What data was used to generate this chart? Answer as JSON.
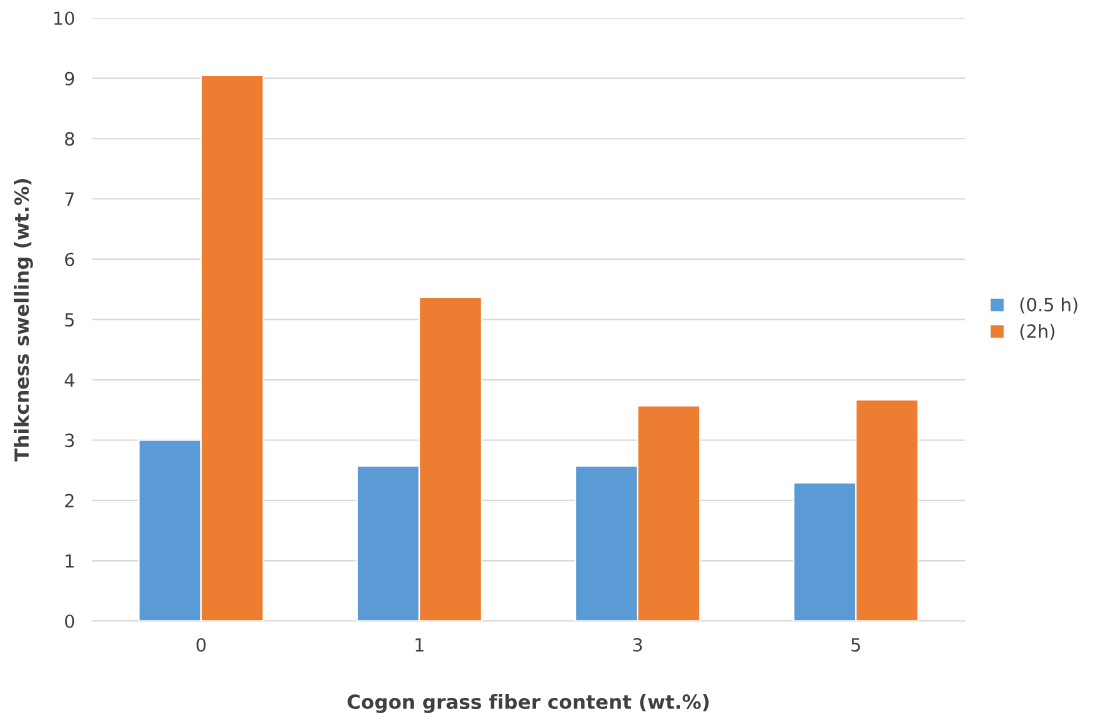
{
  "chart_data": {
    "type": "bar",
    "xlabel": "Cogon grass fiber content (wt.%)",
    "ylabel": "Thikcness swelling (wt.%)",
    "categories": [
      "0",
      "1",
      "3",
      "5"
    ],
    "series": [
      {
        "name": "(0.5 h)",
        "color": "#5b9bd5",
        "values": [
          3.0,
          2.57,
          2.57,
          2.29
        ]
      },
      {
        "name": "(2h)",
        "color": "#ed7d31",
        "values": [
          9.05,
          5.37,
          3.57,
          3.67
        ]
      }
    ],
    "ylim": [
      0,
      10
    ],
    "yticks": [
      0,
      1,
      2,
      3,
      4,
      5,
      6,
      7,
      8,
      9,
      10
    ],
    "grid": "y",
    "legend": "right"
  }
}
